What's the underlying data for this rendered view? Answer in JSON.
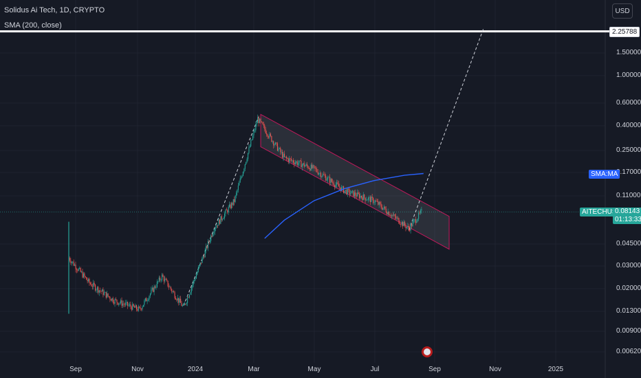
{
  "legend": {
    "symbol_line": "Solidus Ai Tech, 1D, CRYPTO",
    "indicator_line": "SMA (200, close)"
  },
  "currency_button": "USD",
  "y_axis": {
    "ticks": [
      "1.50000",
      "1.00000",
      "0.60000",
      "0.40000",
      "0.25000",
      "0.17000",
      "0.11000",
      "0.04500",
      "0.03000",
      "0.02000",
      "0.01300",
      "0.00900",
      "0.00620"
    ],
    "highlight_level": "2.25788",
    "sma_tag": "SMA:MA",
    "symbol_tag": "AITECHUSD",
    "last_price": "0.08143",
    "countdown": "01:13:33"
  },
  "x_axis": {
    "labels": [
      "Sep",
      "Nov",
      "2024",
      "Mar",
      "May",
      "Jul",
      "Sep",
      "Nov",
      "2025"
    ]
  },
  "colors": {
    "background": "#161a25",
    "up": "#26a69a",
    "down": "#ef5350",
    "sma": "#2962ff",
    "channel_border": "#c2185b",
    "price_line": "#26a69a"
  },
  "chart_data": {
    "type": "candlestick",
    "y_scale": "log",
    "sma_period": 200,
    "last_price": 0.08143,
    "target_level": 2.25788,
    "approx_closes": [
      {
        "date": "2023-08-25",
        "price": 0.035
      },
      {
        "date": "2023-09-15",
        "price": 0.022
      },
      {
        "date": "2023-10-10",
        "price": 0.016
      },
      {
        "date": "2023-11-05",
        "price": 0.0135
      },
      {
        "date": "2023-11-28",
        "price": 0.025
      },
      {
        "date": "2023-12-20",
        "price": 0.014
      },
      {
        "date": "2024-01-20",
        "price": 0.06
      },
      {
        "date": "2024-02-10",
        "price": 0.1
      },
      {
        "date": "2024-03-05",
        "price": 0.45
      },
      {
        "date": "2024-04-01",
        "price": 0.22
      },
      {
        "date": "2024-05-01",
        "price": 0.18
      },
      {
        "date": "2024-06-01",
        "price": 0.12
      },
      {
        "date": "2024-07-01",
        "price": 0.1
      },
      {
        "date": "2024-08-05",
        "price": 0.06
      },
      {
        "date": "2024-08-18",
        "price": 0.08143
      }
    ]
  }
}
